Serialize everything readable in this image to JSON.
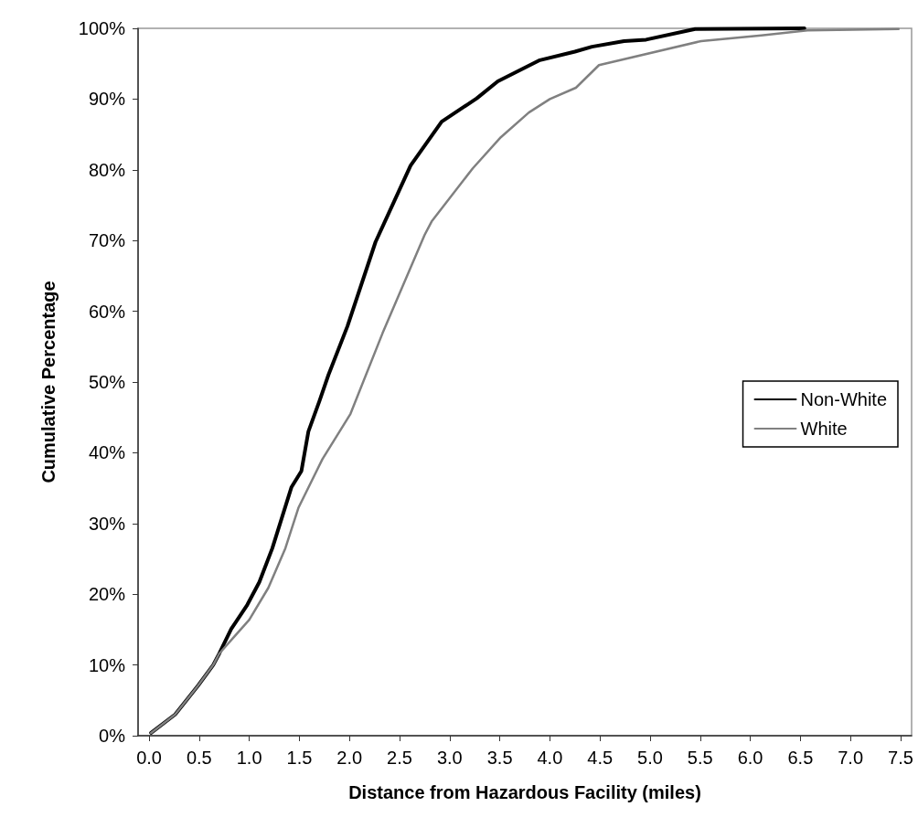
{
  "chart_data": {
    "type": "line",
    "xlabel": "Distance from Hazardous Facility (miles)",
    "ylabel": "Cumulative Percentage",
    "xlim": [
      -0.11,
      7.61
    ],
    "xticks": [
      {
        "value": 0,
        "label": "0.0"
      },
      0.5,
      {
        "value": 1,
        "label": "1.0"
      },
      1.5,
      {
        "value": 2,
        "label": "2.0"
      },
      2.5,
      {
        "value": 3,
        "label": "3.0"
      },
      3.5,
      {
        "value": 4,
        "label": "4.0"
      },
      4.5,
      {
        "value": 5,
        "label": "5.0"
      },
      5.5,
      {
        "value": 6,
        "label": "6.0"
      },
      6.5,
      {
        "value": 7,
        "label": "7.0"
      },
      7.5
    ],
    "ylim": [
      0,
      100
    ],
    "yticks": [
      {
        "value": 0,
        "label": "0%"
      },
      {
        "value": 10,
        "label": "10%"
      },
      {
        "value": 20,
        "label": "20%"
      },
      {
        "value": 30,
        "label": "30%"
      },
      {
        "value": 40,
        "label": "40%"
      },
      {
        "value": 50,
        "label": "50%"
      },
      {
        "value": 60,
        "label": "60%"
      },
      {
        "value": 70,
        "label": "70%"
      },
      {
        "value": 80,
        "label": "80%"
      },
      {
        "value": 90,
        "label": "90%"
      },
      {
        "value": 100,
        "label": "100%"
      }
    ],
    "grid": false,
    "legend": "right",
    "marker": "none",
    "line_style": "solid",
    "series": [
      {
        "name": "Non-White",
        "color": "#000000",
        "x": [
          0.02,
          0.26,
          0.49,
          0.64,
          0.7,
          0.82,
          0.98,
          1.1,
          1.23,
          1.42,
          1.52,
          1.59,
          1.7,
          1.79,
          1.98,
          2.26,
          2.61,
          2.92,
          3.27,
          3.48,
          3.9,
          4.25,
          4.42,
          4.74,
          4.96,
          5.45,
          6.54
        ],
        "values": [
          0.4,
          3.0,
          7.1,
          10.0,
          11.6,
          15.1,
          18.5,
          21.7,
          26.5,
          35.1,
          37.4,
          43.0,
          47.3,
          51.0,
          57.9,
          69.8,
          80.6,
          86.8,
          90.1,
          92.5,
          95.5,
          96.7,
          97.4,
          98.2,
          98.4,
          99.9,
          100
        ]
      },
      {
        "name": "White",
        "color": "#808080",
        "x": [
          0.02,
          0.26,
          0.49,
          0.64,
          0.7,
          0.85,
          1.0,
          1.19,
          1.36,
          1.49,
          1.73,
          2.01,
          2.33,
          2.75,
          2.82,
          3.23,
          3.51,
          3.79,
          4.0,
          4.26,
          4.49,
          5.51,
          6.11,
          6.57,
          7.48
        ],
        "values": [
          0.4,
          3.0,
          7.1,
          10.0,
          11.6,
          14.0,
          16.4,
          20.9,
          26.5,
          32.2,
          39.1,
          45.5,
          56.9,
          70.8,
          72.7,
          80.2,
          84.6,
          88.1,
          90.0,
          91.6,
          94.8,
          98.2,
          99.0,
          99.7,
          99.9
        ]
      }
    ]
  }
}
